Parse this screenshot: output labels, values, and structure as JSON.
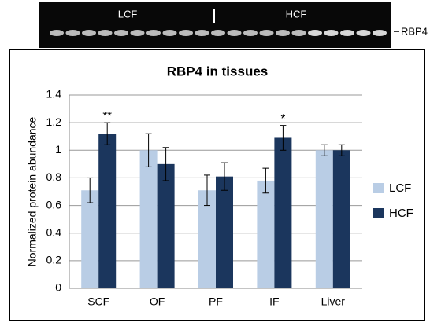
{
  "blot": {
    "left_label": "LCF",
    "right_label": "HCF",
    "marker": "RBP4"
  },
  "chart_data": {
    "type": "bar",
    "title": "RBP4 in tissues",
    "y_label": "Normalized protein abundance",
    "categories": [
      "SCF",
      "OF",
      "PF",
      "IF",
      "Liver"
    ],
    "series": [
      {
        "name": "LCF",
        "color": "#b9cde5",
        "values": [
          0.71,
          1.0,
          0.71,
          0.78,
          1.0
        ],
        "errors": [
          0.09,
          0.12,
          0.11,
          0.09,
          0.04
        ]
      },
      {
        "name": "HCF",
        "color": "#1b365d",
        "values": [
          1.12,
          0.9,
          0.81,
          1.09,
          1.0
        ],
        "errors": [
          0.08,
          0.12,
          0.1,
          0.09,
          0.04
        ]
      }
    ],
    "annotations": [
      {
        "text": "**",
        "category": "SCF",
        "series": "HCF"
      },
      {
        "text": "*",
        "category": "IF",
        "series": "HCF"
      }
    ],
    "ylim": [
      0,
      1.4
    ],
    "yticks": [
      0,
      0.2,
      0.4,
      0.6,
      0.8,
      1,
      1.2,
      1.4
    ],
    "grid": true,
    "legend": "right"
  }
}
